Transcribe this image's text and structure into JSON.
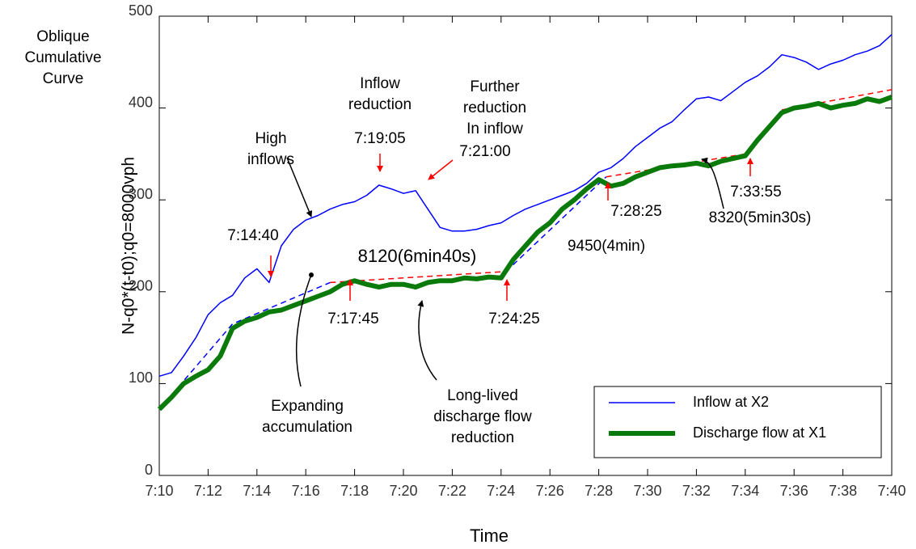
{
  "chart_data": {
    "type": "line",
    "corner_label": [
      "Oblique",
      "Cumulative",
      "Curve"
    ],
    "x_label": "Time",
    "y_label": "N-q0*(t-t0);q0=8000vph",
    "x": [
      10,
      10.5,
      11,
      11.5,
      12,
      12.5,
      13,
      13.5,
      14,
      14.5,
      15,
      15.5,
      16,
      16.5,
      17,
      17.5,
      18,
      18.5,
      19,
      19.5,
      20,
      20.5,
      21,
      21.5,
      22,
      22.5,
      23,
      23.5,
      24,
      24.5,
      25,
      25.5,
      26,
      26.5,
      27,
      27.5,
      28,
      28.5,
      29,
      29.5,
      30,
      30.5,
      31,
      31.5,
      32,
      32.5,
      33,
      33.5,
      34,
      34.5,
      35,
      35.5,
      36,
      36.5,
      37,
      37.5,
      38,
      38.5,
      39,
      39.5,
      40
    ],
    "series": [
      {
        "name": "Inflow at X2",
        "color": "#0000ff",
        "width": 1.5,
        "values": [
          108,
          112,
          130,
          150,
          175,
          188,
          196,
          215,
          225,
          210,
          250,
          268,
          278,
          283,
          290,
          295,
          298,
          305,
          316,
          312,
          307,
          310,
          290,
          270,
          266,
          266,
          268,
          272,
          275,
          283,
          290,
          295,
          300,
          305,
          310,
          318,
          330,
          335,
          345,
          358,
          368,
          378,
          385,
          398,
          410,
          412,
          408,
          418,
          428,
          435,
          445,
          458,
          455,
          450,
          442,
          448,
          452,
          458,
          462,
          468,
          480
        ]
      },
      {
        "name": "Discharge flow at X1",
        "color": "#0a7a0a",
        "width": 6,
        "values": [
          72,
          85,
          100,
          108,
          115,
          130,
          160,
          168,
          172,
          178,
          180,
          185,
          190,
          195,
          200,
          208,
          212,
          208,
          205,
          208,
          208,
          205,
          210,
          212,
          212,
          215,
          214,
          216,
          215,
          235,
          250,
          265,
          275,
          290,
          300,
          312,
          322,
          315,
          318,
          325,
          330,
          335,
          337,
          338,
          340,
          337,
          342,
          345,
          348,
          365,
          380,
          395,
          400,
          402,
          405,
          400,
          403,
          405,
          410,
          407,
          412
        ]
      }
    ],
    "reference_lines": [
      {
        "color": "#0000ff",
        "x": [
          10,
          13,
          17
        ],
        "values": [
          72,
          165,
          210
        ]
      },
      {
        "color": "#ff0000",
        "x": [
          17,
          24.2
        ],
        "values": [
          210,
          222
        ]
      },
      {
        "color": "#0000ff",
        "x": [
          24.2,
          28.3
        ],
        "values": [
          222,
          325
        ]
      },
      {
        "color": "#ff0000",
        "x": [
          28.3,
          34
        ],
        "values": [
          325,
          350
        ]
      },
      {
        "color": "#0000ff",
        "x": [
          34,
          35.5
        ],
        "values": [
          350,
          398
        ]
      },
      {
        "color": "#ff0000",
        "x": [
          35.5,
          40
        ],
        "values": [
          398,
          420
        ]
      }
    ],
    "annotations": [
      {
        "text": [
          "High",
          "inflows"
        ],
        "color": "#000000"
      },
      {
        "text": [
          "Inflow",
          "reduction"
        ],
        "color": "#000000"
      },
      {
        "text": [
          "7:19:05"
        ],
        "color": "#000000"
      },
      {
        "text": [
          "Further",
          "reduction",
          "In inflow"
        ],
        "color": "#000000"
      },
      {
        "text": [
          "7:21:00"
        ],
        "color": "#000000"
      },
      {
        "text": [
          "7:14:40"
        ],
        "color": "#000000"
      },
      {
        "text": [
          "8120(6min40s)"
        ],
        "color": "#ff0000"
      },
      {
        "text": [
          "7:17:45"
        ],
        "color": "#000000"
      },
      {
        "text": [
          "7:24:25"
        ],
        "color": "#000000"
      },
      {
        "text": [
          "9450(4min)"
        ],
        "color": "#000000"
      },
      {
        "text": [
          "7:28:25"
        ],
        "color": "#000000"
      },
      {
        "text": [
          "8320(5min30s)"
        ],
        "color": "#000000"
      },
      {
        "text": [
          "7:33:55"
        ],
        "color": "#000000"
      },
      {
        "text": [
          "Expanding",
          "accumulation"
        ],
        "color": "#000000"
      },
      {
        "text": [
          "Long-lived",
          "discharge flow",
          "reduction"
        ],
        "color": "#000000"
      }
    ],
    "xlim": [
      10,
      40
    ],
    "xticks": [
      {
        "value": 10,
        "label": "7:10"
      },
      {
        "value": 12,
        "label": "7:12"
      },
      {
        "value": 14,
        "label": "7:14"
      },
      {
        "value": 16,
        "label": "7:16"
      },
      {
        "value": 18,
        "label": "7:18"
      },
      {
        "value": 20,
        "label": "7:20"
      },
      {
        "value": 22,
        "label": "7:22"
      },
      {
        "value": 24,
        "label": "7:24"
      },
      {
        "value": 26,
        "label": "7:26"
      },
      {
        "value": 28,
        "label": "7:28"
      },
      {
        "value": 30,
        "label": "7:30"
      },
      {
        "value": 32,
        "label": "7:32"
      },
      {
        "value": 34,
        "label": "7:34"
      },
      {
        "value": 36,
        "label": "7:36"
      },
      {
        "value": 38,
        "label": "7:38"
      },
      {
        "value": 40,
        "label": "7:40"
      }
    ],
    "ylim": [
      0,
      500
    ],
    "yticks": [
      0,
      100,
      200,
      300,
      400,
      500
    ],
    "legend": "bottom-right"
  }
}
